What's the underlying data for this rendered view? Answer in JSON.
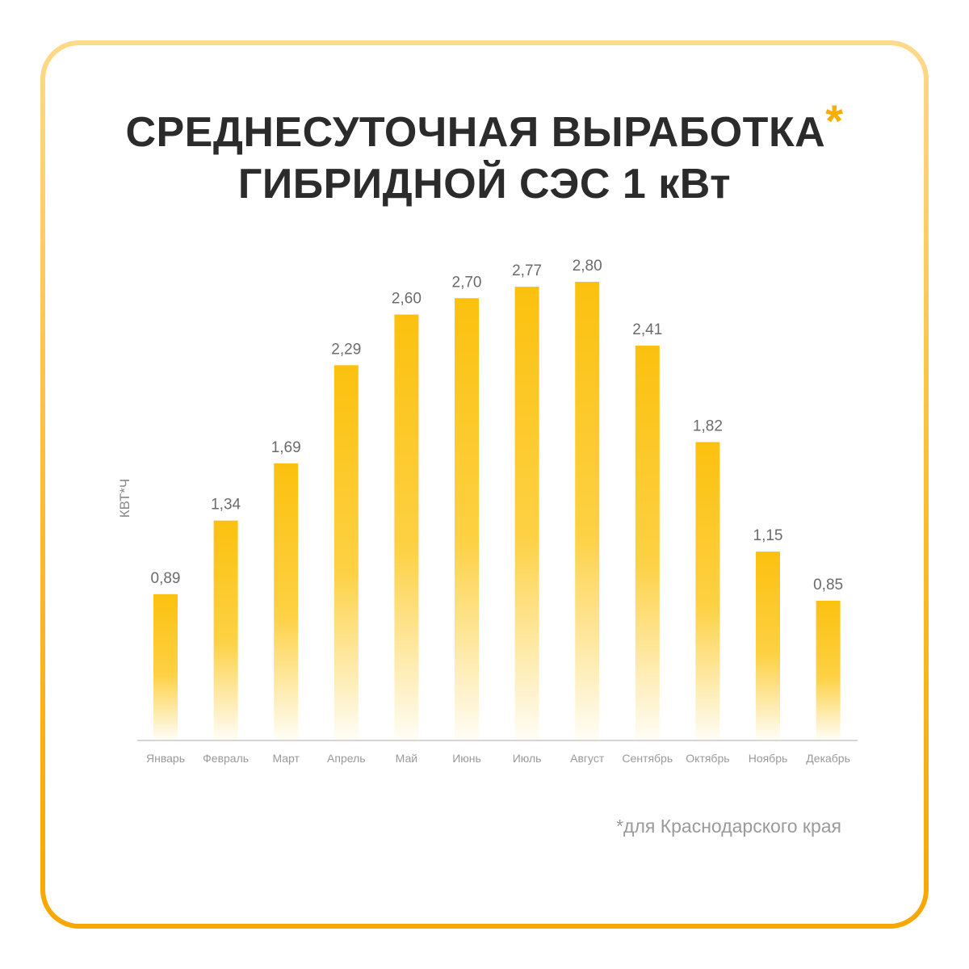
{
  "title": {
    "line1": "СРЕДНЕСУТОЧНАЯ ВЫРАБОТКА",
    "asterisk": "*",
    "line2": "ГИБРИДНОЙ СЭС 1 кВт"
  },
  "footnote": "*для Краснодарского края",
  "colors": {
    "bar": "#fcc10f",
    "accent": "#f8ad00",
    "title": "#2b2b2b",
    "label": "#6b6b6b",
    "axis": "#d5d5d5"
  },
  "chart_data": {
    "type": "bar",
    "title": "",
    "xlabel": "",
    "ylabel": "КВТ*Ч",
    "ylim": [
      0,
      2.8
    ],
    "grid": false,
    "categories": [
      "Январь",
      "Февраль",
      "Март",
      "Апрель",
      "Май",
      "Июнь",
      "Июль",
      "Август",
      "Сентябрь",
      "Октябрь",
      "Ноябрь",
      "Декабрь"
    ],
    "values": [
      0.89,
      1.34,
      1.69,
      2.29,
      2.6,
      2.7,
      2.77,
      2.8,
      2.41,
      1.82,
      1.15,
      0.85
    ],
    "data_labels": [
      "0,89",
      "1,34",
      "1,69",
      "2,29",
      "2,60",
      "2,70",
      "2,77",
      "2,80",
      "2,41",
      "1,82",
      "1,15",
      "0,85"
    ]
  }
}
